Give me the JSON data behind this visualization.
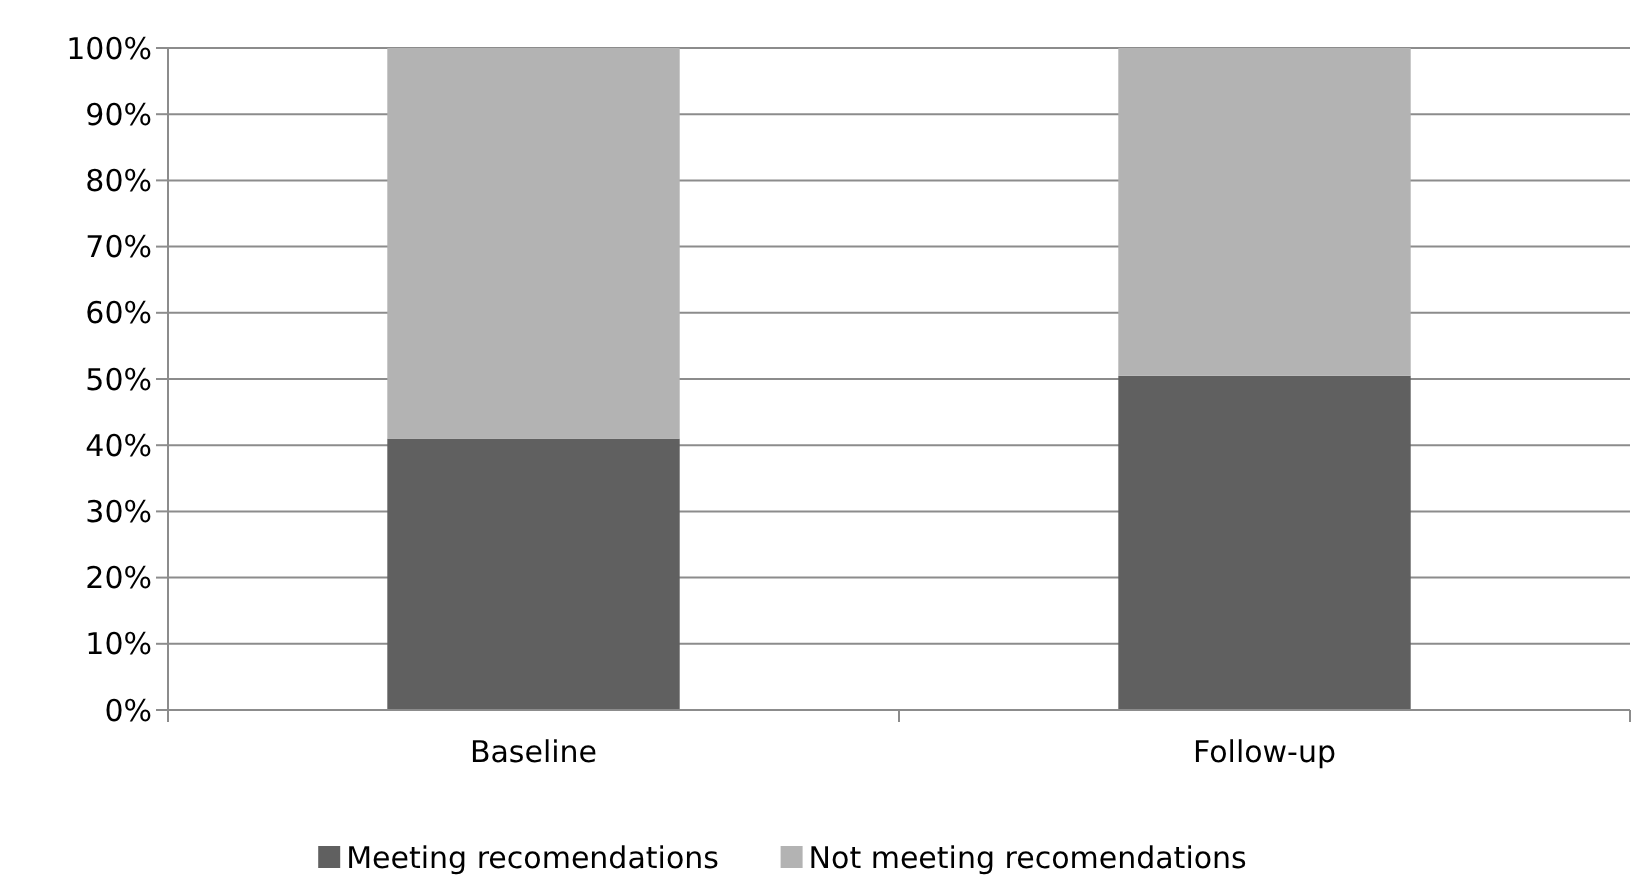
{
  "chart_data": {
    "type": "bar",
    "stacked": true,
    "categories": [
      "Baseline",
      "Follow-up"
    ],
    "series": [
      {
        "name": "Meeting recomendations",
        "color": "#606060",
        "values": [
          41,
          50.5
        ]
      },
      {
        "name": "Not meeting recomendations",
        "color": "#b3b3b3",
        "values": [
          59,
          49.5
        ]
      }
    ],
    "ylim": [
      0,
      100
    ],
    "yticks": [
      {
        "value": 0,
        "label": "0%"
      },
      {
        "value": 10,
        "label": "10%"
      },
      {
        "value": 20,
        "label": "20%"
      },
      {
        "value": 30,
        "label": "30%"
      },
      {
        "value": 40,
        "label": "40%"
      },
      {
        "value": 50,
        "label": "50%"
      },
      {
        "value": 60,
        "label": "60%"
      },
      {
        "value": 70,
        "label": "70%"
      },
      {
        "value": 80,
        "label": "80%"
      },
      {
        "value": 90,
        "label": "90%"
      },
      {
        "value": 100,
        "label": "100%"
      }
    ],
    "grid": "y",
    "legend": "bottom"
  }
}
